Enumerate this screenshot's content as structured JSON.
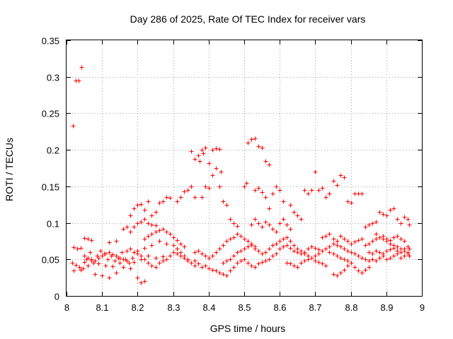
{
  "chart_data": {
    "type": "scatter",
    "title": "Day 286 of 2025, Rate Of TEC Index for receiver vars",
    "xlabel": "GPS time / hours",
    "ylabel": "ROTI / TECUs",
    "xlim": [
      8,
      9
    ],
    "ylim": [
      0,
      0.35
    ],
    "grid": true,
    "marker": "+",
    "marker_color": "#ff0000",
    "x_ticks": [
      {
        "value": 8,
        "label": "8"
      },
      {
        "value": 8.1,
        "label": "8.1"
      },
      {
        "value": 8.2,
        "label": "8.2"
      },
      {
        "value": 8.3,
        "label": "8.3"
      },
      {
        "value": 8.4,
        "label": "8.4"
      },
      {
        "value": 8.5,
        "label": "8.5"
      },
      {
        "value": 8.6,
        "label": "8.6"
      },
      {
        "value": 8.7,
        "label": "8.7"
      },
      {
        "value": 8.8,
        "label": "8.8"
      },
      {
        "value": 8.9,
        "label": "8.9"
      },
      {
        "value": 9,
        "label": "9"
      }
    ],
    "y_ticks": [
      {
        "value": 0,
        "label": "0"
      },
      {
        "value": 0.05,
        "label": "0.05"
      },
      {
        "value": 0.1,
        "label": "0.1"
      },
      {
        "value": 0.15,
        "label": "0.15"
      },
      {
        "value": 0.2,
        "label": "0.2"
      },
      {
        "value": 0.25,
        "label": "0.25"
      },
      {
        "value": 0.3,
        "label": "0.3"
      },
      {
        "value": 0.35,
        "label": "0.35"
      }
    ],
    "points": [
      [
        8.017,
        0.233
      ],
      [
        8.025,
        0.295
      ],
      [
        8.033,
        0.295
      ],
      [
        8.042,
        0.313
      ],
      [
        8.02,
        0.067
      ],
      [
        8.03,
        0.065
      ],
      [
        8.04,
        0.066
      ],
      [
        8.05,
        0.079
      ],
      [
        8.06,
        0.078
      ],
      [
        8.07,
        0.076
      ],
      [
        8.015,
        0.045
      ],
      [
        8.025,
        0.043
      ],
      [
        8.035,
        0.04
      ],
      [
        8.045,
        0.038
      ],
      [
        8.055,
        0.05
      ],
      [
        8.065,
        0.06
      ],
      [
        8.075,
        0.045
      ],
      [
        8.085,
        0.055
      ],
      [
        8.095,
        0.062
      ],
      [
        8.105,
        0.058
      ],
      [
        8.115,
        0.05
      ],
      [
        8.125,
        0.055
      ],
      [
        8.135,
        0.048
      ],
      [
        8.145,
        0.052
      ],
      [
        8.155,
        0.06
      ],
      [
        8.165,
        0.05
      ],
      [
        8.175,
        0.045
      ],
      [
        8.185,
        0.052
      ],
      [
        8.02,
        0.035
      ],
      [
        8.04,
        0.036
      ],
      [
        8.06,
        0.042
      ],
      [
        8.08,
        0.03
      ],
      [
        8.1,
        0.028
      ],
      [
        8.12,
        0.025
      ],
      [
        8.14,
        0.032
      ],
      [
        8.16,
        0.04
      ],
      [
        8.18,
        0.038
      ],
      [
        8.2,
        0.025
      ],
      [
        8.21,
        0.018
      ],
      [
        8.22,
        0.02
      ],
      [
        8.05,
        0.046
      ],
      [
        8.07,
        0.048
      ],
      [
        8.09,
        0.044
      ],
      [
        8.11,
        0.042
      ],
      [
        8.13,
        0.041
      ],
      [
        8.15,
        0.045
      ],
      [
        8.17,
        0.048
      ],
      [
        8.19,
        0.046
      ],
      [
        8.21,
        0.05
      ],
      [
        8.23,
        0.055
      ],
      [
        8.25,
        0.052
      ],
      [
        8.27,
        0.054
      ],
      [
        8.12,
        0.073
      ],
      [
        8.14,
        0.075
      ],
      [
        8.16,
        0.092
      ],
      [
        8.17,
        0.095
      ],
      [
        8.18,
        0.088
      ],
      [
        8.19,
        0.095
      ],
      [
        8.2,
        0.1
      ],
      [
        8.21,
        0.102
      ],
      [
        8.22,
        0.105
      ],
      [
        8.23,
        0.1
      ],
      [
        8.24,
        0.098
      ],
      [
        8.25,
        0.097
      ],
      [
        8.18,
        0.11
      ],
      [
        8.19,
        0.12
      ],
      [
        8.2,
        0.125
      ],
      [
        8.21,
        0.126
      ],
      [
        8.22,
        0.118
      ],
      [
        8.23,
        0.13
      ],
      [
        8.24,
        0.11
      ],
      [
        8.25,
        0.115
      ],
      [
        8.26,
        0.128
      ],
      [
        8.27,
        0.13
      ],
      [
        8.28,
        0.135
      ],
      [
        8.29,
        0.134
      ],
      [
        8.22,
        0.078
      ],
      [
        8.23,
        0.082
      ],
      [
        8.24,
        0.085
      ],
      [
        8.25,
        0.088
      ],
      [
        8.26,
        0.09
      ],
      [
        8.27,
        0.092
      ],
      [
        8.28,
        0.088
      ],
      [
        8.29,
        0.085
      ],
      [
        8.3,
        0.08
      ],
      [
        8.31,
        0.076
      ],
      [
        8.32,
        0.072
      ],
      [
        8.33,
        0.068
      ],
      [
        8.2,
        0.062
      ],
      [
        8.22,
        0.066
      ],
      [
        8.24,
        0.07
      ],
      [
        8.26,
        0.075
      ],
      [
        8.28,
        0.072
      ],
      [
        8.3,
        0.07
      ],
      [
        8.31,
        0.065
      ],
      [
        8.32,
        0.06
      ],
      [
        8.33,
        0.055
      ],
      [
        8.34,
        0.048
      ],
      [
        8.35,
        0.045
      ],
      [
        8.36,
        0.042
      ],
      [
        8.31,
        0.13
      ],
      [
        8.32,
        0.135
      ],
      [
        8.33,
        0.143
      ],
      [
        8.34,
        0.145
      ],
      [
        8.35,
        0.15
      ],
      [
        8.36,
        0.135
      ],
      [
        8.35,
        0.198
      ],
      [
        8.36,
        0.188
      ],
      [
        8.37,
        0.192
      ],
      [
        8.375,
        0.185
      ],
      [
        8.38,
        0.2
      ],
      [
        8.385,
        0.195
      ],
      [
        8.39,
        0.203
      ],
      [
        8.4,
        0.182
      ],
      [
        8.41,
        0.2
      ],
      [
        8.42,
        0.202
      ],
      [
        8.43,
        0.201
      ],
      [
        8.38,
        0.135
      ],
      [
        8.39,
        0.15
      ],
      [
        8.4,
        0.148
      ],
      [
        8.41,
        0.165
      ],
      [
        8.42,
        0.175
      ],
      [
        8.43,
        0.15
      ],
      [
        8.435,
        0.17
      ],
      [
        8.44,
        0.13
      ],
      [
        8.45,
        0.125
      ],
      [
        8.46,
        0.105
      ],
      [
        8.47,
        0.1
      ],
      [
        8.48,
        0.096
      ],
      [
        8.36,
        0.048
      ],
      [
        8.37,
        0.044
      ],
      [
        8.38,
        0.04
      ],
      [
        8.39,
        0.042
      ],
      [
        8.4,
        0.038
      ],
      [
        8.41,
        0.036
      ],
      [
        8.42,
        0.035
      ],
      [
        8.43,
        0.032
      ],
      [
        8.44,
        0.03
      ],
      [
        8.45,
        0.028
      ],
      [
        8.46,
        0.035
      ],
      [
        8.47,
        0.04
      ],
      [
        8.36,
        0.06
      ],
      [
        8.37,
        0.062
      ],
      [
        8.38,
        0.058
      ],
      [
        8.39,
        0.055
      ],
      [
        8.4,
        0.052
      ],
      [
        8.41,
        0.055
      ],
      [
        8.42,
        0.06
      ],
      [
        8.43,
        0.065
      ],
      [
        8.44,
        0.07
      ],
      [
        8.45,
        0.075
      ],
      [
        8.46,
        0.078
      ],
      [
        8.47,
        0.08
      ],
      [
        8.48,
        0.085
      ],
      [
        8.49,
        0.082
      ],
      [
        8.5,
        0.078
      ],
      [
        8.51,
        0.075
      ],
      [
        8.52,
        0.072
      ],
      [
        8.53,
        0.068
      ],
      [
        8.48,
        0.045
      ],
      [
        8.49,
        0.048
      ],
      [
        8.5,
        0.05
      ],
      [
        8.51,
        0.045
      ],
      [
        8.52,
        0.042
      ],
      [
        8.53,
        0.04
      ],
      [
        8.54,
        0.044
      ],
      [
        8.55,
        0.046
      ],
      [
        8.56,
        0.048
      ],
      [
        8.57,
        0.05
      ],
      [
        8.58,
        0.055
      ],
      [
        8.59,
        0.058
      ],
      [
        8.5,
        0.15
      ],
      [
        8.505,
        0.155
      ],
      [
        8.51,
        0.21
      ],
      [
        8.52,
        0.215
      ],
      [
        8.53,
        0.216
      ],
      [
        8.54,
        0.205
      ],
      [
        8.55,
        0.203
      ],
      [
        8.56,
        0.185
      ],
      [
        8.57,
        0.18
      ],
      [
        8.53,
        0.145
      ],
      [
        8.54,
        0.148
      ],
      [
        8.55,
        0.142
      ],
      [
        8.56,
        0.135
      ],
      [
        8.57,
        0.12
      ],
      [
        8.58,
        0.14
      ],
      [
        8.59,
        0.15
      ],
      [
        8.6,
        0.145
      ],
      [
        8.61,
        0.13
      ],
      [
        8.52,
        0.098
      ],
      [
        8.53,
        0.105
      ],
      [
        8.54,
        0.1
      ],
      [
        8.55,
        0.095
      ],
      [
        8.56,
        0.102
      ],
      [
        8.57,
        0.098
      ],
      [
        8.58,
        0.092
      ],
      [
        8.59,
        0.088
      ],
      [
        8.6,
        0.1
      ],
      [
        8.61,
        0.105
      ],
      [
        8.62,
        0.098
      ],
      [
        8.63,
        0.092
      ],
      [
        8.6,
        0.065
      ],
      [
        8.61,
        0.068
      ],
      [
        8.62,
        0.07
      ],
      [
        8.63,
        0.066
      ],
      [
        8.64,
        0.062
      ],
      [
        8.65,
        0.06
      ],
      [
        8.66,
        0.058
      ],
      [
        8.67,
        0.06
      ],
      [
        8.68,
        0.065
      ],
      [
        8.69,
        0.068
      ],
      [
        8.7,
        0.066
      ],
      [
        8.71,
        0.064
      ],
      [
        8.62,
        0.045
      ],
      [
        8.63,
        0.044
      ],
      [
        8.64,
        0.042
      ],
      [
        8.65,
        0.04
      ],
      [
        8.66,
        0.045
      ],
      [
        8.67,
        0.048
      ],
      [
        8.68,
        0.05
      ],
      [
        8.69,
        0.052
      ],
      [
        8.7,
        0.048
      ],
      [
        8.71,
        0.046
      ],
      [
        8.72,
        0.044
      ],
      [
        8.73,
        0.042
      ],
      [
        8.63,
        0.125
      ],
      [
        8.64,
        0.115
      ],
      [
        8.65,
        0.11
      ],
      [
        8.66,
        0.105
      ],
      [
        8.67,
        0.145
      ],
      [
        8.68,
        0.14
      ],
      [
        8.69,
        0.145
      ],
      [
        8.7,
        0.17
      ],
      [
        8.71,
        0.145
      ],
      [
        8.72,
        0.148
      ],
      [
        8.73,
        0.135
      ],
      [
        8.74,
        0.14
      ],
      [
        8.75,
        0.158
      ],
      [
        8.76,
        0.152
      ],
      [
        8.77,
        0.165
      ],
      [
        8.78,
        0.162
      ],
      [
        8.79,
        0.13
      ],
      [
        8.8,
        0.128
      ],
      [
        8.81,
        0.14
      ],
      [
        8.82,
        0.14
      ],
      [
        8.83,
        0.14
      ],
      [
        8.72,
        0.08
      ],
      [
        8.73,
        0.082
      ],
      [
        8.74,
        0.085
      ],
      [
        8.75,
        0.078
      ],
      [
        8.76,
        0.075
      ],
      [
        8.77,
        0.082
      ],
      [
        8.78,
        0.078
      ],
      [
        8.79,
        0.075
      ],
      [
        8.8,
        0.072
      ],
      [
        8.81,
        0.074
      ],
      [
        8.82,
        0.076
      ],
      [
        8.83,
        0.078
      ],
      [
        8.74,
        0.06
      ],
      [
        8.75,
        0.058
      ],
      [
        8.76,
        0.055
      ],
      [
        8.77,
        0.052
      ],
      [
        8.78,
        0.05
      ],
      [
        8.79,
        0.048
      ],
      [
        8.8,
        0.045
      ],
      [
        8.81,
        0.04
      ],
      [
        8.82,
        0.035
      ],
      [
        8.83,
        0.032
      ],
      [
        8.84,
        0.036
      ],
      [
        8.85,
        0.04
      ],
      [
        8.75,
        0.03
      ],
      [
        8.76,
        0.028
      ],
      [
        8.77,
        0.032
      ],
      [
        8.78,
        0.036
      ],
      [
        8.79,
        0.042
      ],
      [
        8.8,
        0.045
      ],
      [
        8.84,
        0.07
      ],
      [
        8.85,
        0.072
      ],
      [
        8.86,
        0.075
      ],
      [
        8.87,
        0.078
      ],
      [
        8.88,
        0.08
      ],
      [
        8.89,
        0.082
      ],
      [
        8.9,
        0.078
      ],
      [
        8.91,
        0.076
      ],
      [
        8.92,
        0.08
      ],
      [
        8.93,
        0.082
      ],
      [
        8.94,
        0.078
      ],
      [
        8.95,
        0.075
      ],
      [
        8.84,
        0.095
      ],
      [
        8.85,
        0.098
      ],
      [
        8.86,
        0.1
      ],
      [
        8.87,
        0.102
      ],
      [
        8.88,
        0.115
      ],
      [
        8.89,
        0.112
      ],
      [
        8.9,
        0.11
      ],
      [
        8.91,
        0.118
      ],
      [
        8.92,
        0.12
      ],
      [
        8.93,
        0.105
      ],
      [
        8.94,
        0.1
      ],
      [
        8.95,
        0.108
      ],
      [
        8.96,
        0.105
      ],
      [
        8.965,
        0.098
      ],
      [
        8.85,
        0.06
      ],
      [
        8.86,
        0.058
      ],
      [
        8.87,
        0.062
      ],
      [
        8.88,
        0.06
      ],
      [
        8.89,
        0.058
      ],
      [
        8.9,
        0.062
      ],
      [
        8.91,
        0.064
      ],
      [
        8.92,
        0.066
      ],
      [
        8.93,
        0.062
      ],
      [
        8.94,
        0.06
      ],
      [
        8.95,
        0.065
      ],
      [
        8.96,
        0.068
      ],
      [
        8.86,
        0.05
      ],
      [
        8.87,
        0.048
      ],
      [
        8.88,
        0.052
      ],
      [
        8.89,
        0.055
      ],
      [
        8.9,
        0.05
      ],
      [
        8.91,
        0.052
      ],
      [
        8.92,
        0.055
      ],
      [
        8.93,
        0.058
      ],
      [
        8.94,
        0.052
      ],
      [
        8.95,
        0.055
      ],
      [
        8.96,
        0.058
      ],
      [
        8.965,
        0.055
      ],
      [
        8.87,
        0.085
      ],
      [
        8.88,
        0.08
      ],
      [
        8.89,
        0.078
      ],
      [
        8.9,
        0.075
      ],
      [
        8.91,
        0.072
      ],
      [
        8.92,
        0.07
      ],
      [
        8.93,
        0.068
      ],
      [
        8.94,
        0.065
      ],
      [
        8.95,
        0.062
      ],
      [
        8.96,
        0.06
      ],
      [
        8.965,
        0.065
      ],
      [
        8.05,
        0.055
      ],
      [
        8.06,
        0.052
      ],
      [
        8.07,
        0.05
      ],
      [
        8.08,
        0.048
      ],
      [
        8.09,
        0.052
      ],
      [
        8.1,
        0.055
      ],
      [
        8.11,
        0.058
      ],
      [
        8.12,
        0.06
      ],
      [
        8.13,
        0.057
      ],
      [
        8.14,
        0.055
      ],
      [
        8.15,
        0.052
      ],
      [
        8.16,
        0.05
      ],
      [
        8.17,
        0.062
      ],
      [
        8.18,
        0.065
      ],
      [
        8.19,
        0.06
      ],
      [
        8.2,
        0.058
      ],
      [
        8.21,
        0.055
      ],
      [
        8.22,
        0.05
      ],
      [
        8.23,
        0.045
      ],
      [
        8.24,
        0.042
      ],
      [
        8.25,
        0.04
      ],
      [
        8.26,
        0.045
      ],
      [
        8.27,
        0.048
      ],
      [
        8.28,
        0.05
      ],
      [
        8.29,
        0.055
      ],
      [
        8.3,
        0.06
      ],
      [
        8.31,
        0.058
      ],
      [
        8.32,
        0.055
      ],
      [
        8.33,
        0.052
      ],
      [
        8.34,
        0.05
      ],
      [
        8.44,
        0.045
      ],
      [
        8.45,
        0.048
      ],
      [
        8.46,
        0.05
      ],
      [
        8.47,
        0.055
      ],
      [
        8.48,
        0.06
      ],
      [
        8.49,
        0.062
      ],
      [
        8.5,
        0.065
      ],
      [
        8.51,
        0.068
      ],
      [
        8.52,
        0.07
      ],
      [
        8.53,
        0.065
      ],
      [
        8.54,
        0.062
      ],
      [
        8.55,
        0.058
      ],
      [
        8.56,
        0.06
      ],
      [
        8.57,
        0.065
      ],
      [
        8.58,
        0.07
      ],
      [
        8.59,
        0.072
      ],
      [
        8.6,
        0.075
      ],
      [
        8.61,
        0.078
      ],
      [
        8.62,
        0.08
      ],
      [
        8.63,
        0.075
      ],
      [
        8.64,
        0.07
      ],
      [
        8.65,
        0.065
      ],
      [
        8.66,
        0.062
      ],
      [
        8.67,
        0.058
      ],
      [
        8.68,
        0.055
      ],
      [
        8.69,
        0.052
      ],
      [
        8.7,
        0.055
      ],
      [
        8.71,
        0.058
      ],
      [
        8.72,
        0.062
      ],
      [
        8.73,
        0.065
      ],
      [
        8.74,
        0.068
      ],
      [
        8.75,
        0.072
      ],
      [
        8.76,
        0.07
      ],
      [
        8.77,
        0.068
      ],
      [
        8.78,
        0.065
      ],
      [
        8.79,
        0.062
      ],
      [
        8.8,
        0.06
      ],
      [
        8.81,
        0.058
      ],
      [
        8.82,
        0.055
      ],
      [
        8.83,
        0.052
      ],
      [
        8.84,
        0.05
      ],
      [
        8.85,
        0.048
      ]
    ]
  }
}
